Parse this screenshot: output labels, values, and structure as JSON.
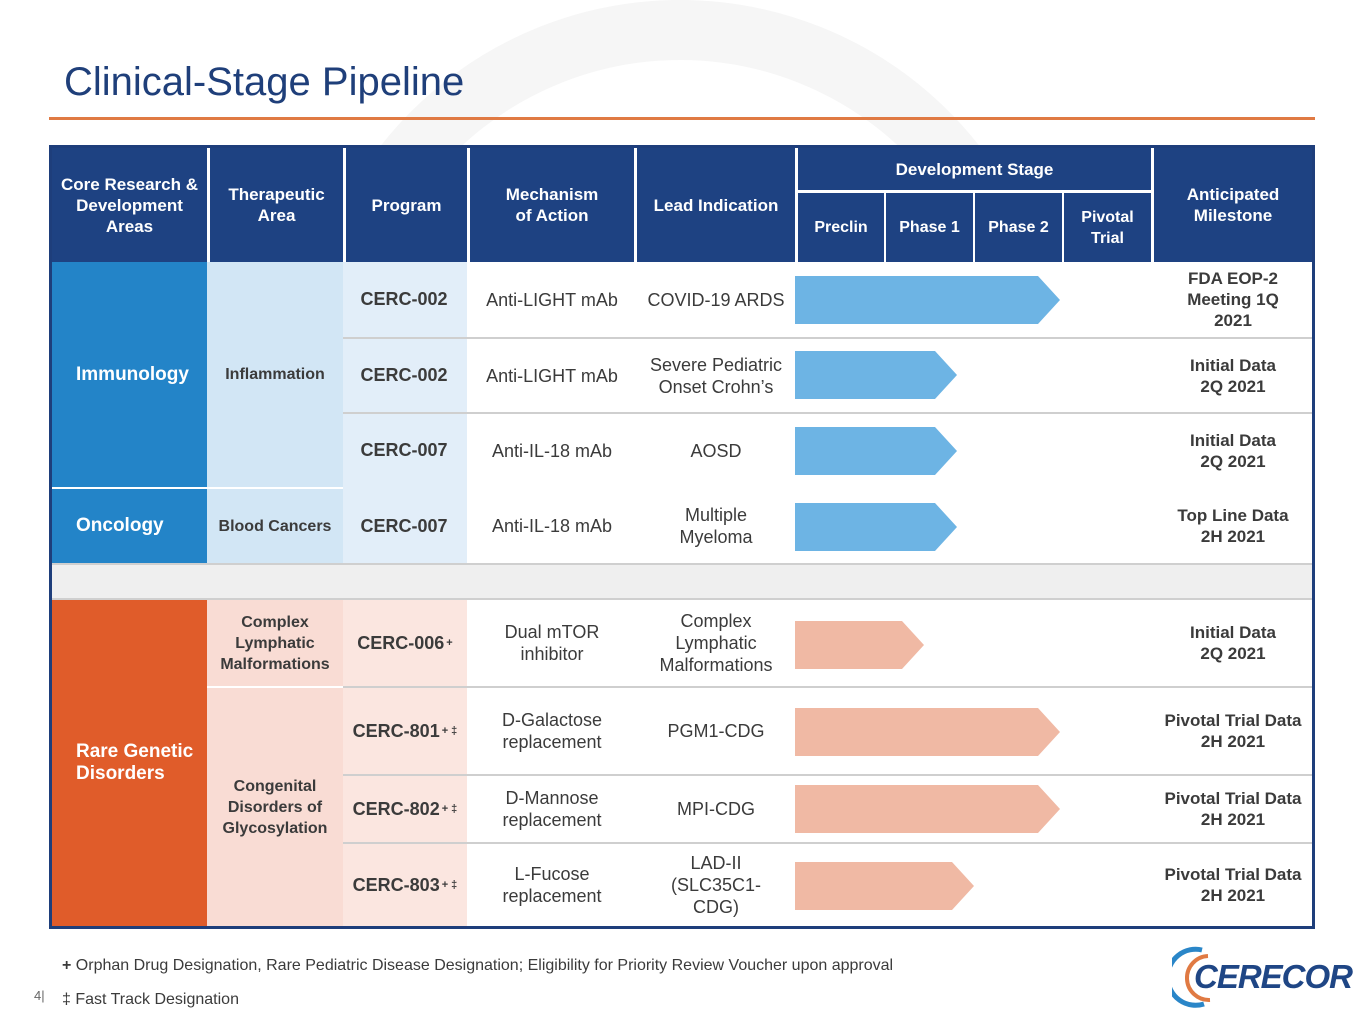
{
  "title": "Clinical-Stage Pipeline",
  "headers": {
    "core": "Core Research & Development Areas",
    "ta": "Therapeutic Area",
    "program": "Program",
    "moa": "Mechanism of Action",
    "indication": "Lead Indication",
    "dev_stage": "Development Stage",
    "preclin": "Preclin",
    "phase1": "Phase 1",
    "phase2": "Phase 2",
    "pivotal": "Pivotal Trial",
    "milestone": "Anticipated Milestone"
  },
  "areas": {
    "immunology": "Immunology",
    "oncology": "Oncology",
    "rare": "Rare Genetic Disorders"
  },
  "therapeutic_areas": {
    "inflammation": "Inflammation",
    "blood": "Blood Cancers",
    "clm": "Complex Lymphatic Malformations",
    "cdg": "Congenital Disorders of Glycosylation"
  },
  "rows": [
    {
      "program": "CERC-002",
      "sup": "",
      "moa": "Anti-LIGHT mAb",
      "indication": "COVID-19 ARDS",
      "milestone": "FDA EOP-2 Meeting 1Q 2021",
      "stage_reached": "Phase 2"
    },
    {
      "program": "CERC-002",
      "sup": "",
      "moa": "Anti-LIGHT mAb",
      "indication": "Severe Pediatric Onset Crohn’s",
      "milestone": "Initial Data 2Q 2021",
      "stage_reached": "Phase 1"
    },
    {
      "program": "CERC-007",
      "sup": "",
      "moa": "Anti-IL-18 mAb",
      "indication": "AOSD",
      "milestone": "Initial Data 2Q 2021",
      "stage_reached": "Phase 1"
    },
    {
      "program": "CERC-007",
      "sup": "",
      "moa": "Anti-IL-18 mAb",
      "indication": "Multiple Myeloma",
      "milestone": "Top Line Data 2H 2021",
      "stage_reached": "Phase 1"
    },
    {
      "program": "CERC-006",
      "sup": "+",
      "moa": "Dual mTOR inhibitor",
      "indication": "Complex Lymphatic Malformations",
      "milestone": "Initial Data 2Q 2021",
      "stage_reached": "Phase 1"
    },
    {
      "program": "CERC-801",
      "sup": "+ ‡",
      "moa": "D-Galactose replacement",
      "indication": "PGM1-CDG",
      "milestone": "Pivotal Trial Data 2H 2021",
      "stage_reached": "Phase 2"
    },
    {
      "program": "CERC-802",
      "sup": "+ ‡",
      "moa": "D-Mannose replacement",
      "indication": "MPI-CDG",
      "milestone": "Pivotal Trial Data 2H 2021",
      "stage_reached": "Phase 2"
    },
    {
      "program": "CERC-803",
      "sup": "+ ‡",
      "moa": "L-Fucose replacement",
      "indication": "LAD-II (SLC35C1-CDG)",
      "milestone": "Pivotal Trial Data 2H 2021",
      "stage_reached": "Phase 2"
    }
  ],
  "footnotes": {
    "orphan_symbol": "+",
    "orphan": "Orphan Drug Designation, Rare Pediatric Disease Designation; Eligibility for Priority Review Voucher upon approval",
    "fast_track": "‡ Fast Track Designation"
  },
  "page_number": "4|",
  "logo_text": "CERECOR",
  "colors": {
    "header_bg": "#1e4282",
    "immunology": "#2384c8",
    "immunology_light": "#d2e6f5",
    "immunology_prog": "#e2eef9",
    "rare": "#e05c2a",
    "rare_light": "#f9dcd4",
    "rare_prog": "#fbe6e0",
    "blue_bar": "#6db4e4",
    "salmon_bar": "#f0b9a4",
    "title": "#1f3f7a",
    "accent_rule": "#e07a43"
  }
}
